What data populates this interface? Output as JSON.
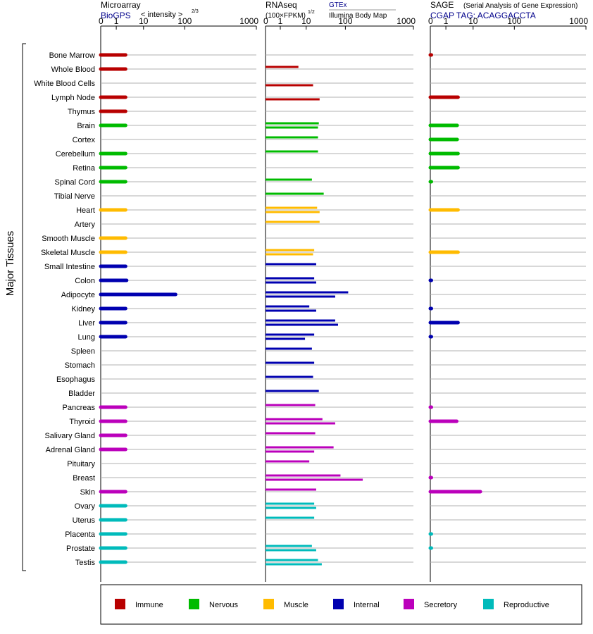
{
  "headers": {
    "microarray": {
      "title": "Microarray",
      "source": "BioGPS",
      "unit": "< intensity >",
      "unit_exponent": "2/3"
    },
    "rnaseq": {
      "title": "RNAseq",
      "unit": "(100×FPKM)",
      "unit_exponent": "1/2",
      "source_1": "GTEx",
      "source_2": "Illumina Body Map"
    },
    "sage": {
      "title": "SAGE",
      "subtitle": "(Serial Analysis of Gene Expression)",
      "tag_line": "CGAP TAG: ACAGGACCTA"
    }
  },
  "axis_label": "Major Tissues",
  "ticks": [
    "0",
    "1",
    "10",
    "100",
    "1000"
  ],
  "category_colors": {
    "Immune": "#b80000",
    "Nervous": "#00bb00",
    "Muscle": "#ffbb00",
    "Internal": "#0000b0",
    "Secretory": "#bb00bb",
    "Reproductive": "#00bbbb"
  },
  "legend": [
    {
      "label": "Immune",
      "color": "#b80000"
    },
    {
      "label": "Nervous",
      "color": "#00bb00"
    },
    {
      "label": "Muscle",
      "color": "#ffbb00"
    },
    {
      "label": "Internal",
      "color": "#0000b0"
    },
    {
      "label": "Secretory",
      "color": "#bb00bb"
    },
    {
      "label": "Reproductive",
      "color": "#00bbbb"
    }
  ],
  "chart_data": {
    "type": "bar",
    "scale": "log-like (0, 1, 10, 100, 1000)",
    "xlim": [
      0,
      1000
    ],
    "tissues": [
      {
        "name": "Bone Marrow",
        "category": "Immune",
        "microarray": 2.2,
        "gtex": null,
        "ibm": null,
        "sage": 0.05
      },
      {
        "name": "Whole Blood",
        "category": "Immune",
        "microarray": 2.2,
        "gtex": 5,
        "ibm": null,
        "sage": null
      },
      {
        "name": "White Blood Cells",
        "category": "Immune",
        "microarray": null,
        "gtex": null,
        "ibm": 15,
        "sage": null
      },
      {
        "name": "Lymph Node",
        "category": "Immune",
        "microarray": 2.2,
        "gtex": null,
        "ibm": 22,
        "sage": 2.8
      },
      {
        "name": "Thymus",
        "category": "Immune",
        "microarray": 2.2,
        "gtex": null,
        "ibm": null,
        "sage": null
      },
      {
        "name": "Brain",
        "category": "Nervous",
        "microarray": 2.2,
        "gtex": 21,
        "ibm": 20,
        "sage": 2.6
      },
      {
        "name": "Cortex",
        "category": "Nervous",
        "microarray": null,
        "gtex": 20,
        "ibm": null,
        "sage": 2.6
      },
      {
        "name": "Cerebellum",
        "category": "Nervous",
        "microarray": 2.2,
        "gtex": 20,
        "ibm": null,
        "sage": 2.8
      },
      {
        "name": "Retina",
        "category": "Nervous",
        "microarray": 2.2,
        "gtex": null,
        "ibm": null,
        "sage": 2.8
      },
      {
        "name": "Spinal Cord",
        "category": "Nervous",
        "microarray": 2.2,
        "gtex": 14,
        "ibm": null,
        "sage": 0.05
      },
      {
        "name": "Tibial Nerve",
        "category": "Nervous",
        "microarray": null,
        "gtex": 28,
        "ibm": null,
        "sage": null
      },
      {
        "name": "Heart",
        "category": "Muscle",
        "microarray": 2.2,
        "gtex": 19,
        "ibm": 22,
        "sage": 2.8
      },
      {
        "name": "Artery",
        "category": "Muscle",
        "microarray": null,
        "gtex": 22,
        "ibm": null,
        "sage": null
      },
      {
        "name": "Smooth Muscle",
        "category": "Muscle",
        "microarray": 2.2,
        "gtex": null,
        "ibm": null,
        "sage": null
      },
      {
        "name": "Skeletal Muscle",
        "category": "Muscle",
        "microarray": 2.2,
        "gtex": 16,
        "ibm": 15,
        "sage": 2.8
      },
      {
        "name": "Small Intestine",
        "category": "Internal",
        "microarray": 2.2,
        "gtex": 18,
        "ibm": null,
        "sage": null
      },
      {
        "name": "Colon",
        "category": "Internal",
        "microarray": 2.4,
        "gtex": 16,
        "ibm": 18,
        "sage": 0.05
      },
      {
        "name": "Adipocyte",
        "category": "Internal",
        "microarray": 60,
        "gtex": 110,
        "ibm": 55,
        "sage": null
      },
      {
        "name": "Kidney",
        "category": "Internal",
        "microarray": 2.2,
        "gtex": 12,
        "ibm": 18,
        "sage": 0.05
      },
      {
        "name": "Liver",
        "category": "Internal",
        "microarray": 2.2,
        "gtex": 55,
        "ibm": 65,
        "sage": 2.8
      },
      {
        "name": "Lung",
        "category": "Internal",
        "microarray": 2.2,
        "gtex": 16,
        "ibm": 9,
        "sage": 0.05
      },
      {
        "name": "Spleen",
        "category": "Internal",
        "microarray": null,
        "gtex": 14,
        "ibm": null,
        "sage": null
      },
      {
        "name": "Stomach",
        "category": "Internal",
        "microarray": null,
        "gtex": 16,
        "ibm": null,
        "sage": null
      },
      {
        "name": "Esophagus",
        "category": "Internal",
        "microarray": null,
        "gtex": 15,
        "ibm": null,
        "sage": null
      },
      {
        "name": "Bladder",
        "category": "Internal",
        "microarray": null,
        "gtex": 21,
        "ibm": null,
        "sage": null
      },
      {
        "name": "Pancreas",
        "category": "Secretory",
        "microarray": 2.2,
        "gtex": 17,
        "ibm": null,
        "sage": 0.05
      },
      {
        "name": "Thyroid",
        "category": "Secretory",
        "microarray": 2.2,
        "gtex": 26,
        "ibm": 55,
        "sage": 2.5
      },
      {
        "name": "Salivary Gland",
        "category": "Secretory",
        "microarray": 2.2,
        "gtex": 17,
        "ibm": null,
        "sage": null
      },
      {
        "name": "Adrenal Gland",
        "category": "Secretory",
        "microarray": 2.2,
        "gtex": 50,
        "ibm": 16,
        "sage": null
      },
      {
        "name": "Pituitary",
        "category": "Secretory",
        "microarray": null,
        "gtex": 12,
        "ibm": null,
        "sage": null
      },
      {
        "name": "Breast",
        "category": "Secretory",
        "microarray": null,
        "gtex": 75,
        "ibm": 180,
        "sage": 0.05
      },
      {
        "name": "Skin",
        "category": "Secretory",
        "microarray": 2.2,
        "gtex": 18,
        "ibm": null,
        "sage": 15
      },
      {
        "name": "Ovary",
        "category": "Reproductive",
        "microarray": 2.2,
        "gtex": 16,
        "ibm": 18,
        "sage": null
      },
      {
        "name": "Uterus",
        "category": "Reproductive",
        "microarray": 2.2,
        "gtex": 16,
        "ibm": null,
        "sage": null
      },
      {
        "name": "Placenta",
        "category": "Reproductive",
        "microarray": 2.2,
        "gtex": null,
        "ibm": null,
        "sage": 0.05
      },
      {
        "name": "Prostate",
        "category": "Reproductive",
        "microarray": 2.2,
        "gtex": 14,
        "ibm": 18,
        "sage": 0.05
      },
      {
        "name": "Testis",
        "category": "Reproductive",
        "microarray": 2.2,
        "gtex": 20,
        "ibm": 25,
        "sage": null
      }
    ]
  }
}
